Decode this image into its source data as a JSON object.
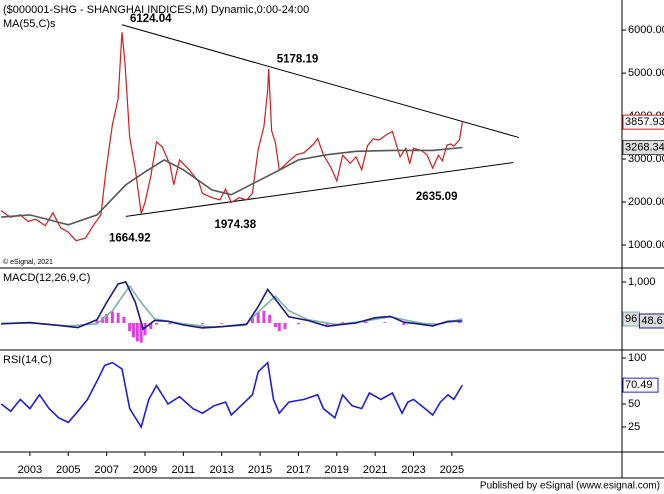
{
  "footer": "Published by eSignal (www.esignal.com)",
  "chart_data": [
    {
      "type": "line",
      "title": "($000001-SHG - SHANGHAI INDICES,M) Dynamic,0:00-24:00",
      "copyright": "© eSignal, 2021",
      "xlim": [
        2001.44,
        2033.87
      ],
      "ylim": [
        465,
        6700
      ],
      "yticks": [
        {
          "value": 1000,
          "label": "1000.00"
        },
        {
          "value": 2000,
          "label": "2000.00"
        },
        {
          "value": 3000,
          "label": "3000.00"
        },
        {
          "value": 4000,
          "label": "4000.00"
        },
        {
          "value": 5000,
          "label": "5000.00"
        },
        {
          "value": 6000,
          "label": "6000.00"
        }
      ],
      "series": [
        {
          "color": "#cc1f1f",
          "last_box": true,
          "x": [
            2001.5,
            2001.8,
            2002.0,
            2002.5,
            2002.9,
            2003.3,
            2003.8,
            2004.2,
            2004.6,
            2005.0,
            2005.4,
            2005.9,
            2006.3,
            2006.7,
            2006.95,
            2007.3,
            2007.6,
            2007.8,
            2007.95,
            2008.2,
            2008.5,
            2008.8,
            2009.0,
            2009.3,
            2009.6,
            2009.9,
            2010.3,
            2010.5,
            2010.8,
            2011.3,
            2011.8,
            2012.0,
            2012.5,
            2012.9,
            2013.2,
            2013.5,
            2013.9,
            2014.3,
            2014.6,
            2014.9,
            2015.2,
            2015.4,
            2015.45,
            2015.6,
            2015.8,
            2016.0,
            2016.5,
            2016.9,
            2017.3,
            2017.8,
            2018.0,
            2018.3,
            2018.7,
            2019.0,
            2019.3,
            2019.7,
            2020.0,
            2020.3,
            2020.6,
            2020.9,
            2021.2,
            2021.6,
            2021.9,
            2022.3,
            2022.6,
            2022.8,
            2023.0,
            2023.4,
            2023.7,
            2024.0,
            2024.3,
            2024.5,
            2024.75,
            2024.95,
            2025.1,
            2025.4,
            2025.55
          ],
          "values": [
            1800,
            1700,
            1650,
            1700,
            1550,
            1600,
            1450,
            1750,
            1400,
            1300,
            1100,
            1160,
            1450,
            1700,
            2680,
            3800,
            4400,
            5950,
            5260,
            3500,
            2750,
            1730,
            1990,
            2600,
            3400,
            3280,
            2870,
            2400,
            2980,
            2750,
            2470,
            2200,
            2100,
            2050,
            2300,
            1990,
            2100,
            2050,
            2200,
            3230,
            3750,
            4610,
            5100,
            3660,
            3380,
            2740,
            2950,
            3100,
            3150,
            3350,
            3480,
            3100,
            2800,
            2490,
            3090,
            2900,
            3050,
            2750,
            3310,
            3470,
            3440,
            3570,
            3640,
            3050,
            3250,
            2890,
            3250,
            3200,
            3100,
            2790,
            3090,
            2960,
            3330,
            3350,
            3300,
            3450,
            3857.93
          ]
        },
        {
          "name": "MA(55,C)s",
          "color": "#555555",
          "last_box": true,
          "x": [
            2001.5,
            2003,
            2005,
            2006.5,
            2008,
            2009,
            2010,
            2011,
            2012.5,
            2013.5,
            2014.5,
            2016,
            2017,
            2018.5,
            2020,
            2022,
            2024,
            2025.55
          ],
          "values": [
            1650,
            1700,
            1470,
            1700,
            2400,
            2700,
            2980,
            2750,
            2280,
            2170,
            2400,
            2740,
            2980,
            3100,
            3180,
            3200,
            3200,
            3268.34
          ]
        }
      ],
      "trendlines": [
        {
          "x": [
            2007.8,
            2028.5
          ],
          "y": [
            6124,
            3500
          ]
        },
        {
          "x": [
            2008.0,
            2028.2
          ],
          "y": [
            1665,
            2920
          ]
        }
      ],
      "annotations": [
        {
          "x": 2007.8,
          "value": 6124.04
        },
        {
          "x": 2015.45,
          "value": 5178.19
        },
        {
          "x": 2008.0,
          "value": 1664.92
        },
        {
          "x": 2013.5,
          "value": 1974.38
        },
        {
          "x": 2024.0,
          "value": 2635.09
        }
      ]
    },
    {
      "type": "line",
      "title": "MACD(12,26,9,C)",
      "xlim": [
        2001.44,
        2033.87
      ],
      "ylim": [
        -659,
        1341
      ],
      "yticks": [
        {
          "value": 1000,
          "label": "1,000"
        }
      ],
      "series": [
        {
          "style": "histogram",
          "color": "#e040e0",
          "x": [
            2006.5,
            2006.8,
            2007.0,
            2007.3,
            2007.6,
            2007.9,
            2008.2,
            2008.4,
            2008.6,
            2008.8,
            2009.0,
            2009.3,
            2009.6,
            2010.3,
            2011.0,
            2012.0,
            2013.0,
            2014.6,
            2014.9,
            2015.2,
            2015.5,
            2015.8,
            2016.0,
            2016.3,
            2017.0,
            2018.5,
            2019.3,
            2020.5,
            2021.5,
            2022.5,
            2023.5,
            2024.5,
            2024.9,
            2025.4
          ],
          "values": [
            60,
            150,
            220,
            280,
            250,
            150,
            -200,
            -350,
            -450,
            -480,
            -300,
            -150,
            -40,
            -30,
            -40,
            -30,
            -20,
            120,
            260,
            300,
            200,
            -100,
            -200,
            -150,
            -30,
            -50,
            20,
            40,
            20,
            -50,
            -20,
            -30,
            40,
            30
          ]
        },
        {
          "color": "#7fb0b0",
          "last_box": true,
          "x": [
            2001.5,
            2003,
            2005,
            2006.5,
            2007.3,
            2008.2,
            2008.8,
            2009.5,
            2011,
            2012.5,
            2014.2,
            2015.2,
            2015.8,
            2016.5,
            2017.5,
            2019,
            2020.5,
            2021.8,
            2022.7,
            2023.5,
            2024.3,
            2025.55
          ],
          "values": [
            -10,
            0,
            -70,
            -20,
            300,
            900,
            500,
            100,
            -20,
            -100,
            -60,
            400,
            650,
            300,
            80,
            -40,
            50,
            150,
            60,
            -10,
            -30,
            96
          ]
        },
        {
          "color": "#1a1a7a",
          "last_box": true,
          "x": [
            2001.5,
            2003,
            2004.5,
            2005.5,
            2006.5,
            2007,
            2007.6,
            2008.0,
            2008.5,
            2008.9,
            2009.5,
            2010.2,
            2011,
            2012,
            2013,
            2014.3,
            2014.9,
            2015.4,
            2015.9,
            2016.5,
            2017.5,
            2018.5,
            2019.2,
            2020,
            2021,
            2021.8,
            2022.5,
            2023.2,
            2024,
            2024.8,
            2025.55
          ],
          "values": [
            -20,
            10,
            -60,
            -110,
            80,
            500,
            950,
            1000,
            500,
            -150,
            60,
            40,
            -50,
            -120,
            -90,
            -30,
            400,
            820,
            520,
            150,
            60,
            -80,
            -40,
            0,
            130,
            160,
            20,
            -20,
            -70,
            40,
            48.6
          ]
        }
      ]
    },
    {
      "type": "line",
      "title": "RSI(14,C)",
      "xlim": [
        2001.44,
        2033.87
      ],
      "ylim": [
        -2.2,
        108.7
      ],
      "yticks": [
        25,
        50,
        100
      ],
      "xticks": [
        2003,
        2005,
        2007,
        2009,
        2011,
        2013,
        2015,
        2017,
        2019,
        2021,
        2023,
        2025
      ],
      "series": [
        {
          "color": "#2020d0",
          "last_box": true,
          "x": [
            2001.5,
            2002,
            2002.5,
            2003,
            2003.5,
            2004,
            2004.5,
            2005,
            2005.5,
            2006,
            2006.5,
            2006.9,
            2007.3,
            2007.8,
            2008.2,
            2008.5,
            2008.8,
            2009.2,
            2009.6,
            2010.2,
            2010.8,
            2011.5,
            2012,
            2012.6,
            2013.2,
            2013.5,
            2014,
            2014.6,
            2014.9,
            2015.4,
            2015.7,
            2016,
            2016.5,
            2017.3,
            2018,
            2018.3,
            2018.9,
            2019.3,
            2019.8,
            2020.3,
            2020.7,
            2021.3,
            2021.9,
            2022.4,
            2022.7,
            2023,
            2023.6,
            2024.0,
            2024.4,
            2024.8,
            2025.1,
            2025.55
          ],
          "values": [
            50,
            42,
            55,
            45,
            60,
            45,
            35,
            30,
            42,
            55,
            75,
            92,
            95,
            88,
            45,
            35,
            25,
            55,
            70,
            50,
            58,
            45,
            40,
            48,
            52,
            38,
            48,
            60,
            85,
            95,
            55,
            40,
            52,
            55,
            60,
            45,
            35,
            60,
            48,
            45,
            62,
            55,
            62,
            40,
            52,
            55,
            45,
            38,
            52,
            60,
            55,
            70.49
          ]
        }
      ]
    }
  ]
}
